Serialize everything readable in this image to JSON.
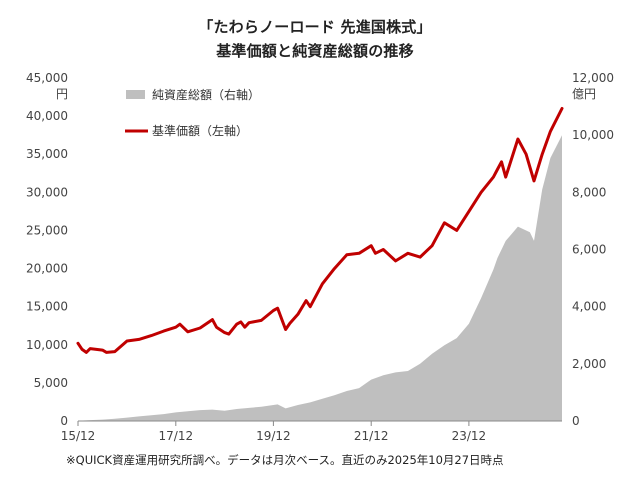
{
  "title_line1": "「たわらノーロード 先進国株式」",
  "title_line2": "基準価額と純資産総額の推移",
  "footnote": "※QUICK資産運用研究所調べ。データは月次ベース。直近のみ2025年10月27日時点",
  "chart_data": {
    "type": "line",
    "x_ticks": [
      "15/12",
      "17/12",
      "19/12",
      "21/12",
      "23/12"
    ],
    "y_left": {
      "label": "円",
      "ylim": [
        0,
        45000
      ],
      "ticks": [
        "0",
        "5,000",
        "10,000",
        "15,000",
        "20,000",
        "25,000",
        "30,000",
        "35,000",
        "40,000",
        "45,000"
      ]
    },
    "y_right": {
      "label": "億円",
      "ylim": [
        0,
        12000
      ],
      "ticks": [
        "0",
        "2,000",
        "4,000",
        "6,000",
        "8,000",
        "10,000",
        "12,000"
      ]
    },
    "legend_position": "top-left",
    "grid": false,
    "colors": {
      "nav_line": "#c00000",
      "aum_area": "#bfbfbf"
    },
    "series": [
      {
        "name": "純資産総額（右軸）",
        "type": "area",
        "axis": "right",
        "x": [
          "2015-12",
          "2016-03",
          "2016-06",
          "2016-09",
          "2016-12",
          "2017-03",
          "2017-06",
          "2017-09",
          "2017-12",
          "2018-03",
          "2018-06",
          "2018-09",
          "2018-12",
          "2019-03",
          "2019-06",
          "2019-09",
          "2019-12",
          "2020-01",
          "2020-03",
          "2020-06",
          "2020-09",
          "2020-12",
          "2021-03",
          "2021-06",
          "2021-09",
          "2021-12",
          "2022-03",
          "2022-06",
          "2022-09",
          "2022-12",
          "2023-03",
          "2023-06",
          "2023-09",
          "2023-12",
          "2024-03",
          "2024-06",
          "2024-07",
          "2024-09",
          "2024-12",
          "2025-03",
          "2025-04",
          "2025-06",
          "2025-08",
          "2025-10-27"
        ],
        "values": [
          10,
          30,
          50,
          80,
          120,
          160,
          200,
          240,
          300,
          340,
          380,
          400,
          360,
          420,
          460,
          500,
          560,
          580,
          440,
          560,
          650,
          780,
          900,
          1050,
          1150,
          1450,
          1600,
          1700,
          1750,
          2000,
          2350,
          2650,
          2900,
          3400,
          4300,
          5300,
          5700,
          6300,
          6800,
          6600,
          6300,
          8100,
          9200,
          10000
        ]
      },
      {
        "name": "基準価額（左軸）",
        "type": "line",
        "axis": "left",
        "x": [
          "2015-12",
          "2016-01",
          "2016-02",
          "2016-03",
          "2016-06",
          "2016-07",
          "2016-09",
          "2016-12",
          "2017-03",
          "2017-06",
          "2017-09",
          "2017-12",
          "2018-01",
          "2018-03",
          "2018-06",
          "2018-09",
          "2018-10",
          "2018-12",
          "2019-01",
          "2019-03",
          "2019-04",
          "2019-05",
          "2019-06",
          "2019-09",
          "2019-12",
          "2020-01",
          "2020-03",
          "2020-04",
          "2020-06",
          "2020-08",
          "2020-09",
          "2020-12",
          "2021-03",
          "2021-06",
          "2021-09",
          "2021-12",
          "2022-01",
          "2022-03",
          "2022-06",
          "2022-09",
          "2022-12",
          "2023-03",
          "2023-06",
          "2023-09",
          "2023-12",
          "2024-03",
          "2024-06",
          "2024-07",
          "2024-08",
          "2024-09",
          "2024-12",
          "2025-02",
          "2025-04",
          "2025-06",
          "2025-08",
          "2025-10-27"
        ],
        "values": [
          10200,
          9400,
          9000,
          9500,
          9300,
          9000,
          9100,
          10500,
          10700,
          11200,
          11800,
          12300,
          12700,
          11700,
          12200,
          13300,
          12300,
          11600,
          11400,
          12700,
          13000,
          12300,
          12900,
          13200,
          14500,
          14800,
          12000,
          12800,
          14000,
          15800,
          15000,
          18000,
          20000,
          21800,
          22000,
          23000,
          22000,
          22500,
          21000,
          22000,
          21500,
          23000,
          26000,
          25000,
          27500,
          30000,
          32000,
          33000,
          34000,
          32000,
          37000,
          35000,
          31500,
          35000,
          38000,
          41000
        ]
      }
    ]
  }
}
